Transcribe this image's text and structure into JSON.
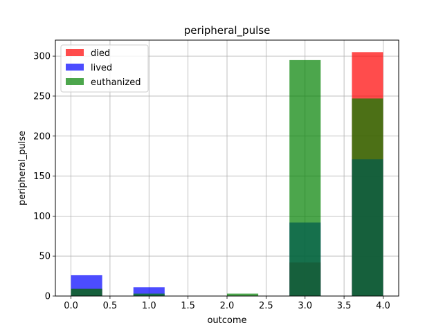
{
  "chart_data": {
    "type": "bar",
    "title": "peripheral_pulse",
    "xlabel": "outcome",
    "ylabel": "peripheral_pulse",
    "xlim": [
      -0.2,
      4.2
    ],
    "ylim": [
      0,
      320
    ],
    "xticks": [
      "0.0",
      "0.5",
      "1.0",
      "1.5",
      "2.0",
      "2.5",
      "3.0",
      "3.5",
      "4.0"
    ],
    "yticks": [
      "0",
      "50",
      "100",
      "150",
      "200",
      "250",
      "300"
    ],
    "grid": true,
    "legend_position": "top-left",
    "bins": [
      [
        0.0,
        0.4
      ],
      [
        0.8,
        1.2
      ],
      [
        2.0,
        2.4
      ],
      [
        2.8,
        3.2
      ],
      [
        3.6,
        4.0
      ]
    ],
    "series": [
      {
        "name": "died",
        "color": "#ff0000",
        "opacity": 0.7,
        "values": [
          9,
          0,
          0,
          42,
          305
        ]
      },
      {
        "name": "lived",
        "color": "#0000ff",
        "opacity": 0.7,
        "values": [
          26,
          11,
          0,
          92,
          171
        ]
      },
      {
        "name": "euthanized",
        "color": "#008000",
        "opacity": 0.7,
        "values": [
          9,
          3,
          3,
          295,
          247
        ]
      }
    ]
  }
}
